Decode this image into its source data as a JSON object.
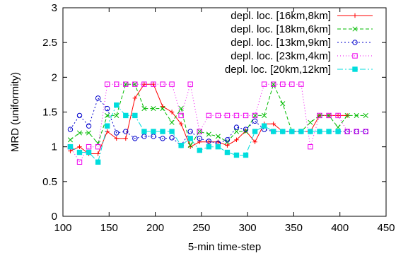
{
  "chart_data": {
    "type": "line",
    "title": "",
    "xlabel": "5-min time-step",
    "ylabel": "MRD (uniformity)",
    "xlim": [
      100,
      450
    ],
    "ylim": [
      0,
      3
    ],
    "xticks": [
      100,
      150,
      200,
      250,
      300,
      350,
      400,
      450
    ],
    "yticks": [
      0,
      0.5,
      1,
      1.5,
      2,
      2.5,
      3
    ],
    "ytick_labels": [
      "0",
      "0.5",
      "1",
      "1.5",
      "2",
      "2.5",
      "3"
    ],
    "grid": false,
    "legend_position": "top-right",
    "series": [
      {
        "name": "depl. loc. [16km,8km]",
        "color": "#ff0000",
        "dash": "",
        "marker": "plus",
        "x": [
          108,
          118,
          128,
          138,
          148,
          158,
          168,
          178,
          188,
          198,
          208,
          218,
          228,
          238,
          248,
          258,
          268,
          278,
          288,
          298,
          308,
          318,
          328,
          338,
          348,
          358,
          368,
          378,
          388,
          398,
          408
        ],
        "y": [
          0.94,
          1.0,
          0.9,
          0.9,
          1.22,
          1.12,
          1.12,
          1.7,
          1.9,
          1.9,
          1.58,
          1.5,
          1.33,
          1.0,
          1.07,
          1.07,
          1.07,
          1.02,
          1.1,
          1.23,
          1.07,
          1.33,
          1.33,
          1.22,
          1.22,
          1.22,
          1.22,
          1.45,
          1.45,
          1.45,
          1.45
        ]
      },
      {
        "name": "depl. loc. [18km,6km]",
        "color": "#00bb00",
        "dash": "5,3",
        "marker": "x",
        "x": [
          108,
          118,
          128,
          138,
          148,
          158,
          168,
          178,
          188,
          198,
          208,
          218,
          228,
          238,
          248,
          258,
          268,
          278,
          288,
          298,
          308,
          318,
          328,
          338,
          348,
          358,
          368,
          378,
          388,
          398,
          408,
          418,
          428
        ],
        "y": [
          1.1,
          1.2,
          1.2,
          1.05,
          1.45,
          1.45,
          1.9,
          1.9,
          1.55,
          1.55,
          1.55,
          1.35,
          1.55,
          1.02,
          1.22,
          1.18,
          1.15,
          1.07,
          1.22,
          1.22,
          1.45,
          1.45,
          1.9,
          1.62,
          1.22,
          1.22,
          1.35,
          1.45,
          1.45,
          1.28,
          1.45,
          1.45,
          1.45
        ]
      },
      {
        "name": "depl. loc. [13km,9km]",
        "color": "#0000cc",
        "dash": "2,3",
        "marker": "circle",
        "x": [
          108,
          118,
          128,
          138,
          148,
          158,
          168,
          178,
          188,
          198,
          208,
          218,
          228,
          238,
          248,
          258,
          268,
          278,
          288,
          298,
          308,
          318,
          328,
          338,
          348,
          358,
          368,
          378,
          388,
          398,
          408,
          418,
          428
        ],
        "y": [
          1.25,
          1.45,
          1.3,
          1.7,
          1.55,
          1.2,
          1.22,
          1.12,
          1.15,
          1.15,
          1.12,
          1.13,
          1.02,
          1.22,
          1.12,
          1.08,
          1.05,
          1.1,
          1.28,
          1.25,
          1.37,
          1.25,
          1.22,
          1.22,
          1.22,
          1.22,
          1.22,
          1.22,
          1.22,
          1.22,
          1.22,
          1.22,
          1.22
        ]
      },
      {
        "name": "depl. loc. [23km,4km]",
        "color": "#ee00ee",
        "dash": "1,3",
        "marker": "square",
        "x": [
          108,
          118,
          128,
          138,
          148,
          158,
          168,
          178,
          188,
          198,
          208,
          218,
          228,
          238,
          248,
          258,
          268,
          278,
          288,
          298,
          308,
          318,
          328,
          338,
          348,
          358,
          368,
          378,
          388,
          398,
          408,
          418,
          428
        ],
        "y": [
          1.0,
          0.78,
          1.0,
          1.0,
          1.9,
          1.9,
          1.9,
          1.9,
          1.9,
          1.9,
          1.9,
          1.9,
          1.45,
          1.9,
          1.22,
          1.45,
          1.45,
          1.45,
          1.45,
          1.45,
          1.45,
          1.9,
          1.9,
          1.9,
          1.9,
          1.9,
          1.0,
          1.45,
          1.45,
          1.45,
          1.22,
          1.22,
          1.22
        ]
      },
      {
        "name": "depl. loc. [20km,12km]",
        "color": "#00dddd",
        "dash": "8,3,2,3",
        "marker": "filled-square",
        "x": [
          108,
          118,
          128,
          138,
          148,
          158,
          168,
          178,
          188,
          198,
          208,
          218,
          228,
          238,
          248,
          258,
          268,
          278,
          288,
          298,
          308,
          318,
          328,
          338,
          348,
          358,
          368,
          378,
          388,
          398
        ],
        "y": [
          1.0,
          0.92,
          0.92,
          0.78,
          1.3,
          1.6,
          1.45,
          1.45,
          1.22,
          1.22,
          1.22,
          1.22,
          1.02,
          1.12,
          0.95,
          1.0,
          1.0,
          0.92,
          0.88,
          0.88,
          1.22,
          1.3,
          1.22,
          1.22,
          1.22,
          1.22,
          1.22,
          1.22,
          1.22,
          1.22
        ]
      }
    ]
  }
}
